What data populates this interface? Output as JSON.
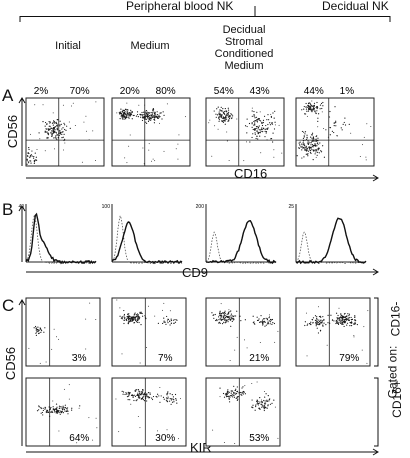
{
  "header": {
    "group_pb": "Peripheral blood NK",
    "group_decidual": "Decidual NK",
    "cols": [
      "Initial",
      "Medium",
      "Decidual Stromal Conditioned Medium"
    ]
  },
  "panels": {
    "A": "A",
    "B": "B",
    "C": "C"
  },
  "panelA": {
    "ylabel": "CD56",
    "xlabel": "CD16",
    "percents": [
      [
        "2%",
        "70%"
      ],
      [
        "20%",
        "80%"
      ],
      [
        "54%",
        "43%"
      ],
      [
        "44%",
        "1%"
      ]
    ]
  },
  "panelB": {
    "xlabel": "CD9",
    "ytick_tops": [
      "40",
      "100",
      "200",
      "25"
    ]
  },
  "panelC": {
    "ylabel": "CD56",
    "xlabel": "KIR",
    "gated": "Gated on:",
    "row1_gate": "CD16-",
    "row2_gate": "CD16+",
    "row1_percents": [
      "3%",
      "7%",
      "21%",
      "79%"
    ],
    "row2_percents": [
      "64%",
      "30%",
      "53%"
    ]
  },
  "colors": {
    "ink": "#111111",
    "dots": "#1a1a1a",
    "dotted": "#555555"
  }
}
